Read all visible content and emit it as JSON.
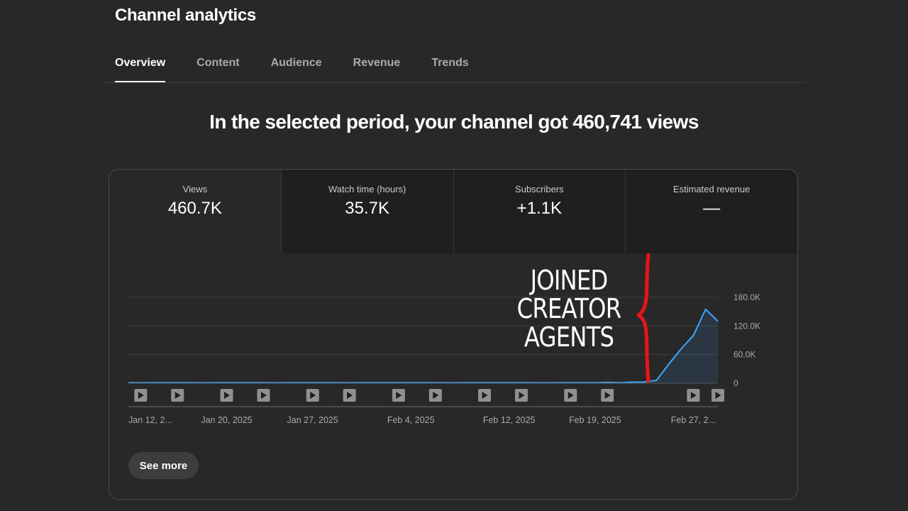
{
  "page": {
    "title": "Channel analytics"
  },
  "tabs": [
    {
      "label": "Overview",
      "active": true
    },
    {
      "label": "Content",
      "active": false
    },
    {
      "label": "Audience",
      "active": false
    },
    {
      "label": "Revenue",
      "active": false
    },
    {
      "label": "Trends",
      "active": false
    }
  ],
  "headline": "In the selected period, your channel got 460,741 views",
  "metrics": [
    {
      "label": "Views",
      "value": "460.7K"
    },
    {
      "label": "Watch time (hours)",
      "value": "35.7K"
    },
    {
      "label": "Subscribers",
      "value": "+1.1K"
    },
    {
      "label": "Estimated revenue",
      "value": "—"
    }
  ],
  "annotation": {
    "lines": [
      "JOINED",
      "CREATOR",
      "AGENTS"
    ],
    "color": "#e8141b"
  },
  "see_more_label": "See more",
  "colors": {
    "line": "#3ea6ff",
    "grid": "#3e3e3e",
    "axis_text": "#aaaaaa"
  },
  "icons": {
    "video_marker": "play-icon"
  },
  "chart_data": {
    "type": "area",
    "series": [
      {
        "values": [
          1000,
          900,
          1100,
          1000,
          1200,
          1000,
          900,
          1000,
          1100,
          1000,
          1200,
          1000,
          900,
          1100,
          1000,
          1200,
          1000,
          1100,
          900,
          1000,
          1100,
          1000,
          1200,
          1000,
          1100,
          1000,
          900,
          1000,
          1100,
          1000,
          1200,
          1000,
          1100,
          1000,
          900,
          1000,
          1100,
          1200,
          1000,
          2000,
          1200,
          2200,
          2500,
          6000,
          40000,
          72000,
          100000,
          155000,
          130000
        ]
      }
    ],
    "x_labels": [
      "Jan 12, 2...",
      "Jan 20, 2025",
      "Jan 27, 2025",
      "Feb 4, 2025",
      "Feb 12, 2025",
      "Feb 19, 2025",
      "Feb 27, 2..."
    ],
    "x_label_index": [
      0,
      8,
      15,
      23,
      31,
      38,
      46
    ],
    "y_ticks": [
      0,
      60000,
      120000,
      180000
    ],
    "y_tick_labels": [
      "0",
      "60.0K",
      "120.0K",
      "180.0K"
    ],
    "ylim": [
      0,
      180000
    ],
    "grid": true,
    "video_marker_index": [
      1,
      4,
      8,
      11,
      15,
      18,
      22,
      25,
      29,
      32,
      36,
      39,
      46,
      48
    ]
  }
}
